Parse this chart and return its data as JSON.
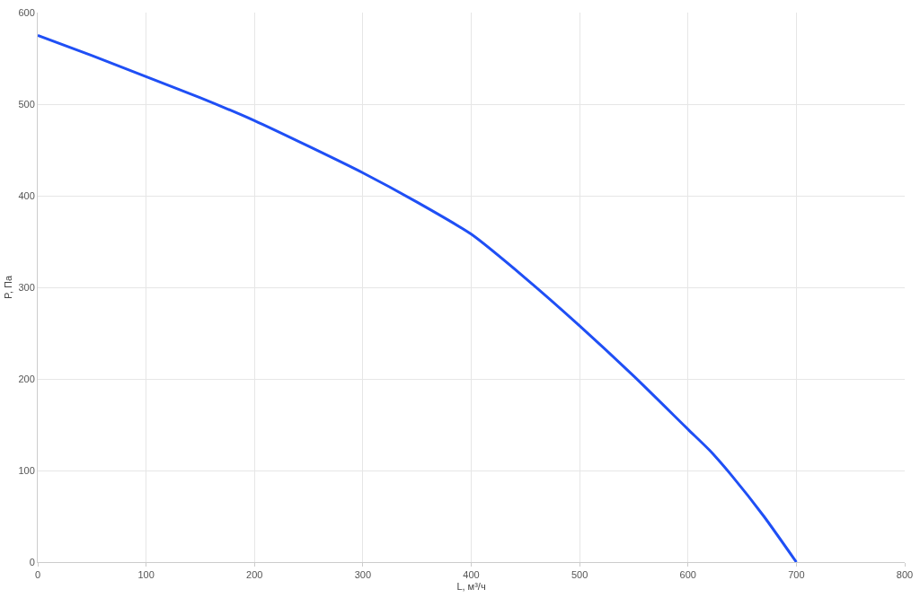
{
  "chart_data": {
    "type": "line",
    "xlabel": "L, м³/ч",
    "ylabel": "P, Па",
    "x": [
      0,
      50,
      100,
      150,
      200,
      250,
      300,
      350,
      400,
      450,
      500,
      550,
      600,
      620,
      640,
      670,
      700
    ],
    "series": [
      {
        "color": "#1f4ff5",
        "values": [
          575,
          553,
          530,
          507,
          482,
          454,
          425,
          393,
          358,
          310,
          258,
          203,
          145,
          122,
          95,
          50,
          0
        ]
      }
    ],
    "xlim": [
      0,
      800
    ],
    "xticks": [
      0,
      100,
      200,
      300,
      400,
      500,
      600,
      700,
      800
    ],
    "ylim": [
      0,
      600
    ],
    "yticks": [
      0,
      100,
      200,
      300,
      400,
      500,
      600
    ],
    "grid": true,
    "marker": "none",
    "line_style": "solid"
  }
}
